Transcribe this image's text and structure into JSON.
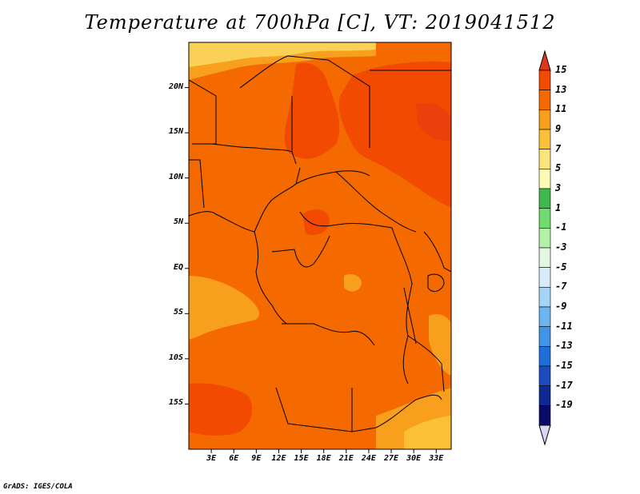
{
  "title": "Temperature at 700hPa [C], VT: 2019041512",
  "credit": "GrADS: IGES/COLA",
  "map": {
    "lon_range_deg": [
      0,
      35
    ],
    "lat_range_deg": [
      -20,
      25
    ],
    "lat_ticks": [
      "20N",
      "15N",
      "10N",
      "5N",
      "EQ",
      "5S",
      "10S",
      "15S"
    ],
    "lat_tick_values": [
      20,
      15,
      10,
      5,
      0,
      -5,
      -10,
      -15
    ],
    "lon_ticks": [
      "3E",
      "6E",
      "9E",
      "12E",
      "15E",
      "18E",
      "21E",
      "24E",
      "27E",
      "30E",
      "33E"
    ],
    "lon_tick_values": [
      3,
      6,
      9,
      12,
      15,
      18,
      21,
      24,
      27,
      30,
      33
    ],
    "colors": {
      "background_field": "#f46a00",
      "warm_patch": "#f24a00",
      "cool_patch": "#f8a01e",
      "light_patch": "#fbd056",
      "borders": "#000000"
    }
  },
  "colorbar": {
    "labels": [
      "15",
      "13",
      "11",
      "9",
      "7",
      "5",
      "3",
      "1",
      "-1",
      "-3",
      "-5",
      "-7",
      "-9",
      "-11",
      "-13",
      "-15",
      "-17",
      "-19"
    ],
    "colors": [
      "#e23618",
      "#f24a00",
      "#f46a00",
      "#f8a01e",
      "#fbc037",
      "#fde37b",
      "#fefbb8",
      "#3fb94d",
      "#6fdc6f",
      "#b4f0a8",
      "#e2f8e0",
      "#d6ecfb",
      "#a6d4f6",
      "#6cb5ef",
      "#3f95e8",
      "#1f6fd8",
      "#1a4cc0",
      "#0f2894",
      "#0a0a6a"
    ],
    "over_color": "#e23618",
    "under_color": "#d8d8f4"
  }
}
